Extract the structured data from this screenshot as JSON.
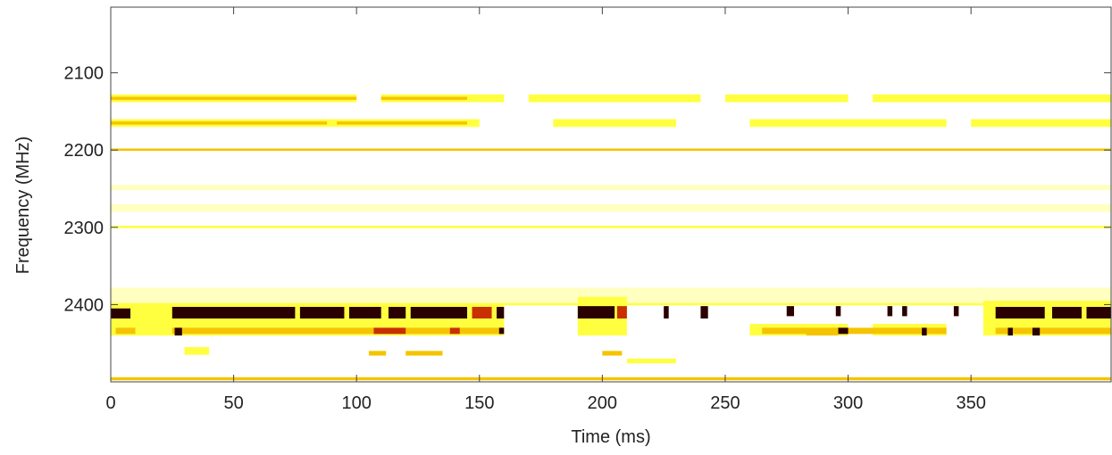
{
  "chart_data": {
    "type": "heatmap",
    "xlabel": "Time (ms)",
    "ylabel": "Frequency (MHz)",
    "xlim": [
      0,
      407
    ],
    "xticks": [
      0,
      50,
      100,
      150,
      200,
      250,
      300,
      350
    ],
    "ylim": [
      2500,
      2015
    ],
    "yticks": [
      2100,
      2200,
      2300,
      2400
    ],
    "level_colors": [
      "#ffffc0",
      "#ffff40",
      "#f5c400",
      "#c83000",
      "#2a0000"
    ],
    "segments": [
      [
        0,
        100,
        2128,
        2138,
        1
      ],
      [
        110,
        160,
        2128,
        2138,
        1
      ],
      [
        170,
        240,
        2128,
        2138,
        1
      ],
      [
        250,
        300,
        2128,
        2138,
        1
      ],
      [
        310,
        407,
        2128,
        2138,
        1
      ],
      [
        0,
        150,
        2160,
        2170,
        1
      ],
      [
        180,
        230,
        2160,
        2170,
        1
      ],
      [
        260,
        340,
        2160,
        2170,
        1
      ],
      [
        350,
        407,
        2160,
        2170,
        1
      ],
      [
        0,
        407,
        2270,
        2280,
        0
      ],
      [
        0,
        407,
        2245,
        2252,
        0
      ],
      [
        0,
        160,
        2378,
        2398,
        0
      ],
      [
        160,
        407,
        2378,
        2398,
        0
      ],
      [
        0,
        160,
        2400,
        2440,
        1
      ],
      [
        190,
        210,
        2390,
        2440,
        1
      ],
      [
        260,
        300,
        2425,
        2440,
        1
      ],
      [
        310,
        340,
        2425,
        2440,
        1
      ],
      [
        355,
        407,
        2395,
        2440,
        1
      ],
      [
        0,
        100,
        2131,
        2135,
        2
      ],
      [
        110,
        145,
        2131,
        2135,
        2
      ],
      [
        0,
        88,
        2163,
        2167,
        2
      ],
      [
        92,
        145,
        2163,
        2167,
        2
      ],
      [
        30,
        40,
        2455,
        2465,
        1
      ],
      [
        105,
        112,
        2460,
        2466,
        2
      ],
      [
        120,
        135,
        2460,
        2466,
        2
      ],
      [
        200,
        208,
        2460,
        2466,
        2
      ],
      [
        210,
        230,
        2470,
        2476,
        1
      ],
      [
        0,
        407,
        2198,
        2201,
        2
      ],
      [
        0,
        407,
        2298,
        2301,
        1
      ],
      [
        0,
        407,
        2398,
        2401,
        1
      ],
      [
        0,
        407,
        2494,
        2498,
        2
      ],
      [
        2,
        10,
        2430,
        2438,
        2
      ],
      [
        25,
        160,
        2430,
        2438,
        2
      ],
      [
        265,
        340,
        2430,
        2438,
        2
      ],
      [
        360,
        407,
        2430,
        2438,
        2
      ],
      [
        0,
        8,
        2405,
        2418,
        4
      ],
      [
        25,
        75,
        2403,
        2418,
        4
      ],
      [
        77,
        95,
        2403,
        2418,
        4
      ],
      [
        97,
        110,
        2403,
        2418,
        4
      ],
      [
        113,
        120,
        2403,
        2418,
        4
      ],
      [
        122,
        145,
        2403,
        2418,
        4
      ],
      [
        147,
        155,
        2403,
        2418,
        3
      ],
      [
        157,
        160,
        2403,
        2418,
        4
      ],
      [
        190,
        205,
        2402,
        2418,
        4
      ],
      [
        206,
        210,
        2402,
        2418,
        3
      ],
      [
        225,
        227,
        2402,
        2418,
        4
      ],
      [
        240,
        243,
        2402,
        2418,
        4
      ],
      [
        275,
        278,
        2402,
        2415,
        4
      ],
      [
        295,
        297,
        2402,
        2415,
        4
      ],
      [
        316,
        318,
        2402,
        2415,
        4
      ],
      [
        322,
        324,
        2402,
        2415,
        4
      ],
      [
        343,
        345,
        2402,
        2415,
        4
      ],
      [
        360,
        380,
        2403,
        2418,
        4
      ],
      [
        383,
        395,
        2403,
        2418,
        4
      ],
      [
        397,
        407,
        2403,
        2418,
        4
      ],
      [
        26,
        29,
        2430,
        2440,
        4
      ],
      [
        107,
        120,
        2430,
        2438,
        3
      ],
      [
        138,
        142,
        2430,
        2438,
        3
      ],
      [
        158,
        160,
        2430,
        2438,
        4
      ],
      [
        283,
        296,
        2432,
        2440,
        2
      ],
      [
        296,
        300,
        2430,
        2438,
        4
      ],
      [
        330,
        332,
        2430,
        2440,
        4
      ],
      [
        365,
        367,
        2430,
        2440,
        4
      ],
      [
        375,
        378,
        2430,
        2440,
        4
      ]
    ]
  }
}
